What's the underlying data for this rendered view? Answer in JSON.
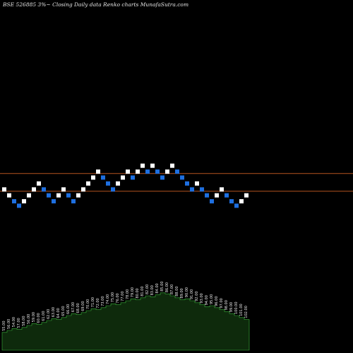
{
  "title": "BSE 526885 3%~  Closing Daily data  Renko  charts MunafaSutra.com",
  "colors": {
    "up": "#ffffff",
    "down": "#1e6fe0",
    "ref_line": "#b5541f",
    "volume_fill": "#0e2a0c",
    "volume_line": "#3bb33b"
  },
  "chart_data": {
    "type": "renko",
    "brick_size_percent": 3,
    "ylim": [
      0,
      20
    ],
    "reference_lines": [
      8.3,
      7.1
    ],
    "bricks": [
      {
        "i": 0,
        "y": 7.2,
        "up": true
      },
      {
        "i": 1,
        "y": 6.8,
        "up": true
      },
      {
        "i": 2,
        "y": 6.4,
        "up": false
      },
      {
        "i": 3,
        "y": 6.1,
        "up": false
      },
      {
        "i": 4,
        "y": 6.4,
        "up": true
      },
      {
        "i": 5,
        "y": 6.8,
        "up": true
      },
      {
        "i": 6,
        "y": 7.2,
        "up": true
      },
      {
        "i": 7,
        "y": 7.6,
        "up": true
      },
      {
        "i": 8,
        "y": 7.2,
        "up": false
      },
      {
        "i": 9,
        "y": 6.8,
        "up": false
      },
      {
        "i": 10,
        "y": 6.4,
        "up": false
      },
      {
        "i": 11,
        "y": 6.8,
        "up": true
      },
      {
        "i": 12,
        "y": 7.2,
        "up": true
      },
      {
        "i": 13,
        "y": 6.8,
        "up": false
      },
      {
        "i": 14,
        "y": 6.4,
        "up": false
      },
      {
        "i": 15,
        "y": 6.8,
        "up": true
      },
      {
        "i": 16,
        "y": 7.2,
        "up": true
      },
      {
        "i": 17,
        "y": 7.6,
        "up": true
      },
      {
        "i": 18,
        "y": 8.0,
        "up": true
      },
      {
        "i": 19,
        "y": 8.4,
        "up": true
      },
      {
        "i": 20,
        "y": 8.0,
        "up": false
      },
      {
        "i": 21,
        "y": 7.6,
        "up": false
      },
      {
        "i": 22,
        "y": 7.2,
        "up": false
      },
      {
        "i": 23,
        "y": 7.6,
        "up": true
      },
      {
        "i": 24,
        "y": 8.0,
        "up": true
      },
      {
        "i": 25,
        "y": 8.4,
        "up": true
      },
      {
        "i": 26,
        "y": 8.0,
        "up": false
      },
      {
        "i": 27,
        "y": 8.4,
        "up": true
      },
      {
        "i": 28,
        "y": 8.8,
        "up": true
      },
      {
        "i": 29,
        "y": 8.4,
        "up": false
      },
      {
        "i": 30,
        "y": 8.8,
        "up": true
      },
      {
        "i": 31,
        "y": 8.4,
        "up": false
      },
      {
        "i": 32,
        "y": 8.0,
        "up": false
      },
      {
        "i": 33,
        "y": 8.4,
        "up": true
      },
      {
        "i": 34,
        "y": 8.8,
        "up": true
      },
      {
        "i": 35,
        "y": 8.4,
        "up": false
      },
      {
        "i": 36,
        "y": 8.0,
        "up": false
      },
      {
        "i": 37,
        "y": 7.6,
        "up": false
      },
      {
        "i": 38,
        "y": 7.2,
        "up": false
      },
      {
        "i": 39,
        "y": 7.6,
        "up": true
      },
      {
        "i": 40,
        "y": 7.2,
        "up": false
      },
      {
        "i": 41,
        "y": 6.8,
        "up": false
      },
      {
        "i": 42,
        "y": 6.4,
        "up": false
      },
      {
        "i": 43,
        "y": 6.8,
        "up": true
      },
      {
        "i": 44,
        "y": 7.2,
        "up": true
      },
      {
        "i": 45,
        "y": 6.8,
        "up": false
      },
      {
        "i": 46,
        "y": 6.4,
        "up": false
      },
      {
        "i": 47,
        "y": 6.1,
        "up": false
      },
      {
        "i": 48,
        "y": 6.4,
        "up": true
      },
      {
        "i": 49,
        "y": 6.8,
        "up": true
      }
    ],
    "volume": {
      "values": [
        18,
        20,
        22,
        21,
        23,
        25,
        27,
        26,
        28,
        30,
        32,
        31,
        33,
        35,
        37,
        36,
        38,
        40,
        42,
        41,
        43,
        45,
        47,
        46,
        48,
        50,
        52,
        51,
        53,
        55,
        54,
        56,
        58,
        57,
        55,
        53,
        51,
        52,
        50,
        48,
        46,
        44,
        45,
        43,
        41,
        39,
        37,
        35,
        33,
        31
      ],
      "labels": [
        "55.00",
        "56.00",
        "54.00",
        "57.00",
        "58.00",
        "56.00",
        "59.00",
        "60.00",
        "61.00",
        "62.00",
        "63.00",
        "64.00",
        "65.00",
        "66.00",
        "67.00",
        "68.00",
        "69.00",
        "70.00",
        "71.00",
        "72.00",
        "73.00",
        "74.00",
        "75.00",
        "76.00",
        "77.00",
        "78.00",
        "79.00",
        "80.00",
        "81.00",
        "82.00",
        "83.00",
        "84.00",
        "85.00",
        "86.00",
        "87.00",
        "88.00",
        "89.00",
        "90.00",
        "91.00",
        "92.00",
        "93.00",
        "94.00",
        "95.00",
        "96.00",
        "97.00",
        "98.00",
        "99.00",
        "100.00",
        "101.00",
        "102.00"
      ]
    }
  }
}
